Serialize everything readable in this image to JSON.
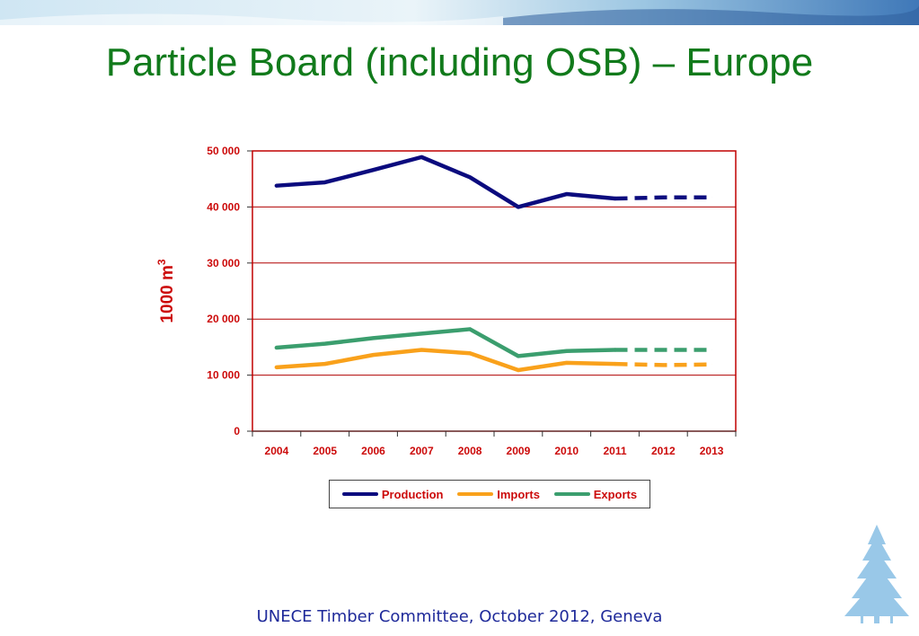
{
  "slide": {
    "title": "Particle Board (including OSB) – Europe",
    "footer": "UNECE Timber Committee, October 2012, Geneva"
  },
  "colors": {
    "title": "#117a1b",
    "axis_text": "#cc0a0a",
    "frame": "#c00000",
    "footer": "#1f2a9a",
    "tree": "#8ec3e6"
  },
  "icons": {
    "banner": "mosaic-banner-image",
    "logo": "fir-tree-icon"
  },
  "chart_data": {
    "type": "line",
    "title": "",
    "ylabel": "1000 m",
    "ylabel_superscript": "3",
    "xlabel": "",
    "categories": [
      "2004",
      "2005",
      "2006",
      "2007",
      "2008",
      "2009",
      "2010",
      "2011",
      "2012",
      "2013"
    ],
    "y_ticks": [
      "0",
      "10 000",
      "20 000",
      "30 000",
      "40 000",
      "50 000"
    ],
    "ylim": [
      0,
      50000
    ],
    "grid": true,
    "legend_position": "bottom",
    "forecast_from": "2011",
    "series": [
      {
        "name": "Production",
        "color": "#0b0b7e",
        "values": [
          43800,
          44400,
          46600,
          48900,
          45300,
          40000,
          42300,
          41500,
          41700,
          41700
        ]
      },
      {
        "name": "Imports",
        "color": "#f9a11b",
        "values": [
          11400,
          12000,
          13600,
          14500,
          13900,
          10900,
          12200,
          12000,
          11800,
          11900
        ]
      },
      {
        "name": "Exports",
        "color": "#3b9e6e",
        "values": [
          14900,
          15600,
          16600,
          17400,
          18200,
          13400,
          14300,
          14500,
          14500,
          14500
        ]
      }
    ]
  }
}
